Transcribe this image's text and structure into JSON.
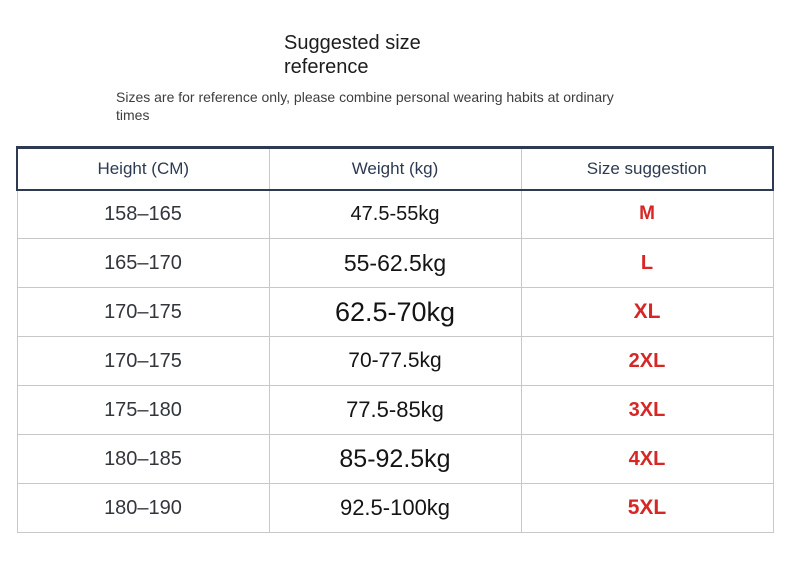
{
  "header": {
    "title": "Suggested size reference",
    "subtitle": "Sizes are for reference only, please combine personal wearing habits at ordinary times"
  },
  "chart_data": {
    "type": "table",
    "title": "Suggested size reference",
    "columns": [
      "Height (CM)",
      "Weight (kg)",
      "Size suggestion"
    ],
    "rows": [
      {
        "height": "158–165",
        "weight": "47.5-55kg",
        "size": "M"
      },
      {
        "height": "165–170",
        "weight": "55-62.5kg",
        "size": "L"
      },
      {
        "height": "170–175",
        "weight": "62.5-70kg",
        "size": "XL"
      },
      {
        "height": "170–175",
        "weight": "70-77.5kg",
        "size": "2XL"
      },
      {
        "height": "175–180",
        "weight": "77.5-85kg",
        "size": "3XL"
      },
      {
        "height": "180–185",
        "weight": "85-92.5kg",
        "size": "4XL"
      },
      {
        "height": "180–190",
        "weight": "92.5-100kg",
        "size": "5XL"
      }
    ]
  },
  "colors": {
    "size_red": "#d62626",
    "header_navy": "#2d3a51",
    "grid_gray": "#c8c8c8",
    "background": "#ffffff"
  }
}
